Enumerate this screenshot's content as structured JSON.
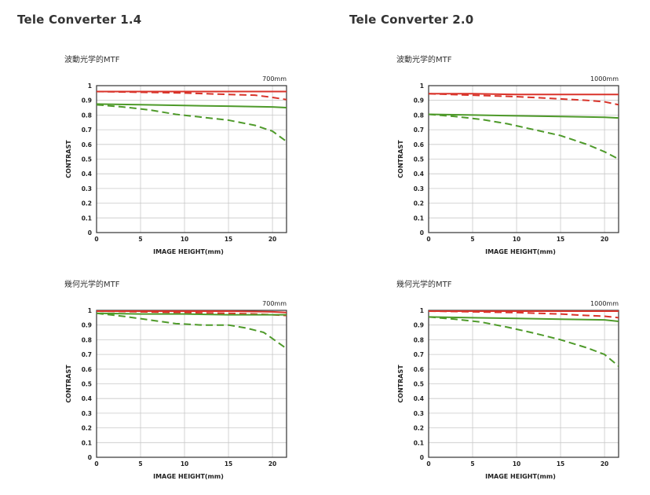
{
  "sections": [
    {
      "title": "Tele Converter 1.4",
      "charts": [
        {
          "subtitle": "波動光学的MTF",
          "chart_data": {
            "type": "line",
            "focal_label": "700mm",
            "xlabel": "IMAGE HEIGHT(mm)",
            "ylabel": "CONTRAST",
            "xlim": [
              0,
              21.6
            ],
            "ylim": [
              0,
              1
            ],
            "x_ticks": [
              0,
              5,
              10,
              15,
              20
            ],
            "y_ticks": [
              0,
              0.1,
              0.2,
              0.3,
              0.4,
              0.5,
              0.6,
              0.7,
              0.8,
              0.9,
              1
            ],
            "y_tick_labels": [
              "0",
              "0.1",
              "0.2",
              "0.3",
              "0.4",
              "0.5",
              "0.6",
              "0.7",
              "0.8",
              "0.9",
              "1"
            ],
            "grid": true,
            "series": [
              {
                "color": "#d9342b",
                "dash": false,
                "x": [
                  0,
                  5,
                  10,
                  15,
                  20,
                  21.6
                ],
                "y": [
                  0.96,
                  0.96,
                  0.96,
                  0.96,
                  0.96,
                  0.96
                ]
              },
              {
                "color": "#d9342b",
                "dash": true,
                "x": [
                  0,
                  5,
                  10,
                  15,
                  18,
                  20,
                  21.6
                ],
                "y": [
                  0.96,
                  0.955,
                  0.95,
                  0.94,
                  0.935,
                  0.92,
                  0.905
                ]
              },
              {
                "color": "#4e9a2a",
                "dash": false,
                "x": [
                  0,
                  5,
                  10,
                  15,
                  20,
                  21.6
                ],
                "y": [
                  0.875,
                  0.87,
                  0.865,
                  0.86,
                  0.855,
                  0.85
                ]
              },
              {
                "color": "#4e9a2a",
                "dash": true,
                "x": [
                  0,
                  3,
                  6,
                  9,
                  12,
                  15,
                  18,
                  20,
                  21.6
                ],
                "y": [
                  0.87,
                  0.855,
                  0.835,
                  0.805,
                  0.785,
                  0.765,
                  0.73,
                  0.69,
                  0.62
                ]
              }
            ]
          }
        },
        {
          "subtitle": "幾何光学的MTF",
          "chart_data": {
            "type": "line",
            "focal_label": "700mm",
            "xlabel": "IMAGE HEIGHT(mm)",
            "ylabel": "CONTRAST",
            "xlim": [
              0,
              21.6
            ],
            "ylim": [
              0,
              1
            ],
            "x_ticks": [
              0,
              5,
              10,
              15,
              20
            ],
            "y_ticks": [
              0,
              0.1,
              0.2,
              0.3,
              0.4,
              0.5,
              0.6,
              0.7,
              0.8,
              0.9,
              1
            ],
            "y_tick_labels": [
              "0",
              "0.1",
              "0.2",
              "0.3",
              "0.4",
              "0.5",
              "0.6",
              "0.7",
              "0.8",
              "0.9",
              "1"
            ],
            "grid": true,
            "series": [
              {
                "color": "#d9342b",
                "dash": false,
                "x": [
                  0,
                  5,
                  10,
                  15,
                  20,
                  21.6
                ],
                "y": [
                  0.995,
                  0.995,
                  0.995,
                  0.995,
                  0.99,
                  0.985
                ]
              },
              {
                "color": "#d9342b",
                "dash": true,
                "x": [
                  0,
                  5,
                  10,
                  15,
                  18,
                  20,
                  21.6
                ],
                "y": [
                  0.995,
                  0.99,
                  0.985,
                  0.98,
                  0.975,
                  0.97,
                  0.965
                ]
              },
              {
                "color": "#4e9a2a",
                "dash": false,
                "x": [
                  0,
                  5,
                  10,
                  15,
                  20,
                  21.6
                ],
                "y": [
                  0.98,
                  0.975,
                  0.975,
                  0.97,
                  0.97,
                  0.97
                ]
              },
              {
                "color": "#4e9a2a",
                "dash": true,
                "x": [
                  0,
                  3,
                  6,
                  9,
                  12,
                  15,
                  17,
                  19,
                  21.6
                ],
                "y": [
                  0.98,
                  0.96,
                  0.935,
                  0.91,
                  0.9,
                  0.9,
                  0.88,
                  0.85,
                  0.74
                ]
              }
            ]
          }
        }
      ]
    },
    {
      "title": "Tele Converter 2.0",
      "charts": [
        {
          "subtitle": "波動光学的MTF",
          "chart_data": {
            "type": "line",
            "focal_label": "1000mm",
            "xlabel": "IMAGE HEIGHT(mm)",
            "ylabel": "CONTRAST",
            "xlim": [
              0,
              21.6
            ],
            "ylim": [
              0,
              1
            ],
            "x_ticks": [
              0,
              5,
              10,
              15,
              20
            ],
            "y_ticks": [
              0,
              0.1,
              0.2,
              0.3,
              0.4,
              0.5,
              0.6,
              0.7,
              0.8,
              0.9,
              1
            ],
            "y_tick_labels": [
              "0",
              "0.1",
              "0.2",
              "0.3",
              "0.4",
              "0.5",
              "0.6",
              "0.7",
              "0.8",
              "0.9",
              "1"
            ],
            "grid": true,
            "series": [
              {
                "color": "#d9342b",
                "dash": false,
                "x": [
                  0,
                  5,
                  10,
                  15,
                  20,
                  21.6
                ],
                "y": [
                  0.945,
                  0.945,
                  0.94,
                  0.94,
                  0.94,
                  0.94
                ]
              },
              {
                "color": "#d9342b",
                "dash": true,
                "x": [
                  0,
                  5,
                  10,
                  15,
                  18,
                  20,
                  21.6
                ],
                "y": [
                  0.945,
                  0.935,
                  0.925,
                  0.91,
                  0.9,
                  0.89,
                  0.87
                ]
              },
              {
                "color": "#4e9a2a",
                "dash": false,
                "x": [
                  0,
                  5,
                  10,
                  15,
                  20,
                  21.6
                ],
                "y": [
                  0.805,
                  0.8,
                  0.795,
                  0.79,
                  0.785,
                  0.78
                ]
              },
              {
                "color": "#4e9a2a",
                "dash": true,
                "x": [
                  0,
                  3,
                  6,
                  9,
                  12,
                  15,
                  18,
                  20,
                  21.6
                ],
                "y": [
                  0.805,
                  0.79,
                  0.77,
                  0.74,
                  0.7,
                  0.66,
                  0.6,
                  0.55,
                  0.5
                ]
              }
            ]
          }
        },
        {
          "subtitle": "幾何光学的MTF",
          "chart_data": {
            "type": "line",
            "focal_label": "1000mm",
            "xlabel": "IMAGE HEIGHT(mm)",
            "ylabel": "CONTRAST",
            "xlim": [
              0,
              21.6
            ],
            "ylim": [
              0,
              1
            ],
            "x_ticks": [
              0,
              5,
              10,
              15,
              20
            ],
            "y_ticks": [
              0,
              0.1,
              0.2,
              0.3,
              0.4,
              0.5,
              0.6,
              0.7,
              0.8,
              0.9,
              1
            ],
            "y_tick_labels": [
              "0",
              "0.1",
              "0.2",
              "0.3",
              "0.4",
              "0.5",
              "0.6",
              "0.7",
              "0.8",
              "0.9",
              "1"
            ],
            "grid": true,
            "series": [
              {
                "color": "#d9342b",
                "dash": false,
                "x": [
                  0,
                  5,
                  10,
                  15,
                  20,
                  21.6
                ],
                "y": [
                  0.995,
                  0.995,
                  0.995,
                  0.995,
                  0.995,
                  0.995
                ]
              },
              {
                "color": "#d9342b",
                "dash": true,
                "x": [
                  0,
                  5,
                  10,
                  15,
                  18,
                  20,
                  21.6
                ],
                "y": [
                  0.995,
                  0.99,
                  0.985,
                  0.975,
                  0.965,
                  0.96,
                  0.95
                ]
              },
              {
                "color": "#4e9a2a",
                "dash": false,
                "x": [
                  0,
                  5,
                  10,
                  15,
                  20,
                  21.6
                ],
                "y": [
                  0.955,
                  0.95,
                  0.945,
                  0.94,
                  0.935,
                  0.925
                ]
              },
              {
                "color": "#4e9a2a",
                "dash": true,
                "x": [
                  0,
                  3,
                  6,
                  9,
                  12,
                  15,
                  18,
                  20,
                  21.6
                ],
                "y": [
                  0.955,
                  0.94,
                  0.92,
                  0.885,
                  0.845,
                  0.8,
                  0.745,
                  0.7,
                  0.62
                ]
              }
            ]
          }
        }
      ]
    }
  ]
}
